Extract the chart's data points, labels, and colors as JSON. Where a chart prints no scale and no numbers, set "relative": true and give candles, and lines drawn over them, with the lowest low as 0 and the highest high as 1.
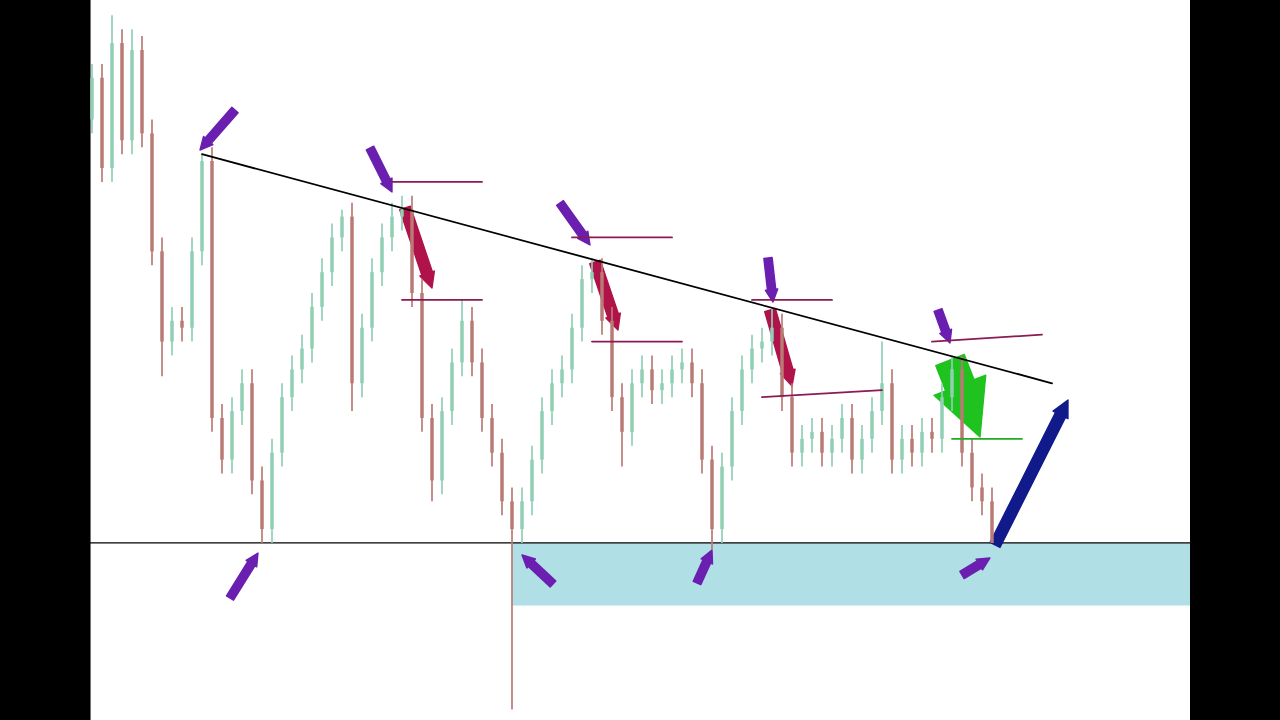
{
  "chart_data": {
    "type": "candlestick",
    "relative": true,
    "colors": [
      "#8fcfb4",
      "#b97a74",
      "#8fcfb4",
      "#b97a74",
      "#8fcfb4",
      "#b97a74",
      "#b97a74",
      "#b97a74",
      "#8fcfb4",
      "#b97a74",
      "#8fcfb4",
      "#8fcfb4",
      "#b97a74",
      "#b97a74",
      "#8fcfb4",
      "#8fcfb4",
      "#b97a74",
      "#b97a74",
      "#8fcfb4",
      "#8fcfb4",
      "#8fcfb4",
      "#8fcfb4",
      "#8fcfb4",
      "#8fcfb4",
      "#8fcfb4",
      "#8fcfb4",
      "#b97a74",
      "#8fcfb4",
      "#8fcfb4",
      "#8fcfb4",
      "#8fcfb4",
      "#8fcfb4",
      "#b97a74",
      "#b97a74",
      "#b97a74",
      "#8fcfb4",
      "#8fcfb4",
      "#8fcfb4",
      "#b97a74",
      "#b97a74",
      "#b97a74",
      "#b97a74",
      "#b97a74",
      "#8fcfb4",
      "#8fcfb4",
      "#8fcfb4",
      "#8fcfb4",
      "#8fcfb4",
      "#8fcfb4",
      "#8fcfb4",
      "#8fcfb4",
      "#b97a74",
      "#b97a74",
      "#b97a74",
      "#8fcfb4",
      "#8fcfb4",
      "#b97a74",
      "#8fcfb4",
      "#8fcfb4",
      "#8fcfb4",
      "#b97a74",
      "#b97a74",
      "#b97a74",
      "#8fcfb4",
      "#8fcfb4",
      "#8fcfb4",
      "#8fcfb4",
      "#8fcfb4",
      "#8fcfb4",
      "#b97a74",
      "#b97a74",
      "#8fcfb4",
      "#8fcfb4",
      "#b97a74",
      "#8fcfb4",
      "#8fcfb4",
      "#b97a74",
      "#8fcfb4",
      "#8fcfb4",
      "#8fcfb4",
      "#b97a74",
      "#8fcfb4",
      "#b97a74",
      "#8fcfb4",
      "#b97a74",
      "#8fcfb4",
      "#8fcfb4",
      "#b97a74",
      "#b97a74",
      "#b97a74",
      "#b97a74",
      null,
      null,
      null,
      null,
      null,
      null,
      null,
      null,
      null,
      null,
      null,
      null,
      null,
      null,
      null,
      null,
      null,
      null,
      null
    ],
    "categories": [
      null,
      null,
      null,
      null,
      null,
      null,
      null,
      null,
      null,
      null,
      null,
      null,
      null,
      null,
      null,
      null,
      null,
      null,
      null,
      null,
      null,
      null,
      null,
      null,
      null,
      null,
      null,
      null,
      null,
      null,
      null,
      null,
      null,
      null,
      null,
      null,
      null,
      null,
      null,
      null,
      null,
      null,
      null,
      null,
      null,
      null,
      null,
      null,
      null,
      null,
      null,
      null,
      null,
      null,
      null,
      null,
      null,
      null,
      null,
      null,
      null,
      null,
      null,
      null,
      null,
      null,
      null,
      null,
      null,
      null,
      null,
      null,
      null,
      null,
      null,
      null,
      null,
      null,
      null,
      null,
      null,
      null,
      null,
      null,
      null,
      null,
      null,
      null,
      null,
      null,
      null,
      null,
      null,
      null,
      null,
      null,
      null,
      null,
      null,
      null,
      null,
      null,
      null,
      null,
      null,
      null,
      null,
      null,
      null,
      null
    ],
    "ohlc": [
      [
        0.85,
        0.93,
        0.83,
        0.91
      ],
      [
        0.91,
        0.93,
        0.76,
        0.78
      ],
      [
        0.78,
        1.0,
        0.76,
        0.96
      ],
      [
        0.96,
        0.98,
        0.8,
        0.82
      ],
      [
        0.82,
        0.98,
        0.8,
        0.95
      ],
      [
        0.95,
        0.97,
        0.81,
        0.83
      ],
      [
        0.83,
        0.85,
        0.64,
        0.66
      ],
      [
        0.66,
        0.68,
        0.48,
        0.53
      ],
      [
        0.53,
        0.58,
        0.51,
        0.56
      ],
      [
        0.56,
        0.58,
        0.53,
        0.55
      ],
      [
        0.55,
        0.68,
        0.53,
        0.66
      ],
      [
        0.66,
        0.8,
        0.64,
        0.79
      ],
      [
        0.79,
        0.81,
        0.4,
        0.42
      ],
      [
        0.42,
        0.44,
        0.34,
        0.36
      ],
      [
        0.36,
        0.45,
        0.34,
        0.43
      ],
      [
        0.43,
        0.49,
        0.41,
        0.47
      ],
      [
        0.47,
        0.49,
        0.31,
        0.33
      ],
      [
        0.33,
        0.35,
        0.24,
        0.26
      ],
      [
        0.26,
        0.39,
        0.24,
        0.37
      ],
      [
        0.37,
        0.47,
        0.35,
        0.45
      ],
      [
        0.45,
        0.51,
        0.43,
        0.49
      ],
      [
        0.49,
        0.54,
        0.47,
        0.52
      ],
      [
        0.52,
        0.6,
        0.5,
        0.58
      ],
      [
        0.58,
        0.65,
        0.56,
        0.63
      ],
      [
        0.63,
        0.7,
        0.61,
        0.68
      ],
      [
        0.68,
        0.72,
        0.66,
        0.71
      ],
      [
        0.71,
        0.73,
        0.43,
        0.47
      ],
      [
        0.47,
        0.57,
        0.45,
        0.55
      ],
      [
        0.55,
        0.65,
        0.53,
        0.63
      ],
      [
        0.63,
        0.7,
        0.61,
        0.68
      ],
      [
        0.68,
        0.73,
        0.66,
        0.71
      ],
      [
        0.71,
        0.74,
        0.69,
        0.72
      ],
      [
        0.72,
        0.74,
        0.58,
        0.6
      ],
      [
        0.6,
        0.62,
        0.4,
        0.42
      ],
      [
        0.42,
        0.44,
        0.3,
        0.33
      ],
      [
        0.33,
        0.45,
        0.31,
        0.43
      ],
      [
        0.43,
        0.52,
        0.41,
        0.5
      ],
      [
        0.5,
        0.59,
        0.48,
        0.56
      ],
      [
        0.56,
        0.58,
        0.48,
        0.5
      ],
      [
        0.5,
        0.52,
        0.4,
        0.42
      ],
      [
        0.42,
        0.44,
        0.35,
        0.37
      ],
      [
        0.37,
        0.39,
        0.28,
        0.3
      ],
      [
        0.3,
        0.32,
        0.0,
        0.26
      ],
      [
        0.26,
        0.32,
        0.24,
        0.3
      ],
      [
        0.3,
        0.38,
        0.28,
        0.36
      ],
      [
        0.36,
        0.45,
        0.34,
        0.43
      ],
      [
        0.43,
        0.49,
        0.41,
        0.47
      ],
      [
        0.47,
        0.51,
        0.45,
        0.49
      ],
      [
        0.49,
        0.57,
        0.47,
        0.55
      ],
      [
        0.55,
        0.64,
        0.53,
        0.62
      ],
      [
        0.62,
        0.65,
        0.6,
        0.63
      ],
      [
        0.63,
        0.65,
        0.54,
        0.56
      ],
      [
        0.56,
        0.58,
        0.43,
        0.45
      ],
      [
        0.45,
        0.47,
        0.35,
        0.4
      ],
      [
        0.4,
        0.49,
        0.38,
        0.47
      ],
      [
        0.47,
        0.51,
        0.45,
        0.49
      ],
      [
        0.49,
        0.51,
        0.44,
        0.46
      ],
      [
        0.46,
        0.49,
        0.44,
        0.47
      ],
      [
        0.47,
        0.51,
        0.45,
        0.49
      ],
      [
        0.49,
        0.52,
        0.47,
        0.5
      ],
      [
        0.5,
        0.52,
        0.45,
        0.47
      ],
      [
        0.47,
        0.49,
        0.34,
        0.36
      ],
      [
        0.36,
        0.38,
        0.23,
        0.26
      ],
      [
        0.26,
        0.37,
        0.24,
        0.35
      ],
      [
        0.35,
        0.45,
        0.33,
        0.43
      ],
      [
        0.43,
        0.51,
        0.41,
        0.49
      ],
      [
        0.49,
        0.54,
        0.47,
        0.52
      ],
      [
        0.52,
        0.55,
        0.5,
        0.53
      ],
      [
        0.53,
        0.58,
        0.51,
        0.55
      ],
      [
        0.55,
        0.57,
        0.43,
        0.45
      ],
      [
        0.45,
        0.47,
        0.35,
        0.37
      ],
      [
        0.37,
        0.41,
        0.35,
        0.39
      ],
      [
        0.39,
        0.42,
        0.37,
        0.4
      ],
      [
        0.4,
        0.42,
        0.35,
        0.37
      ],
      [
        0.37,
        0.41,
        0.35,
        0.39
      ],
      [
        0.39,
        0.44,
        0.37,
        0.42
      ],
      [
        0.42,
        0.44,
        0.34,
        0.36
      ],
      [
        0.36,
        0.41,
        0.34,
        0.39
      ],
      [
        0.39,
        0.45,
        0.37,
        0.43
      ],
      [
        0.43,
        0.53,
        0.41,
        0.47
      ],
      [
        0.47,
        0.49,
        0.34,
        0.36
      ],
      [
        0.36,
        0.41,
        0.34,
        0.39
      ],
      [
        0.39,
        0.41,
        0.35,
        0.37
      ],
      [
        0.37,
        0.42,
        0.35,
        0.4
      ],
      [
        0.4,
        0.42,
        0.37,
        0.39
      ],
      [
        0.39,
        0.47,
        0.37,
        0.45
      ],
      [
        0.45,
        0.51,
        0.43,
        0.49
      ],
      [
        0.49,
        0.51,
        0.35,
        0.37
      ],
      [
        0.37,
        0.39,
        0.3,
        0.32
      ],
      [
        0.32,
        0.34,
        0.28,
        0.3
      ],
      [
        0.3,
        0.32,
        0.24,
        0.24
      ],
      null,
      null,
      null,
      null,
      null,
      null,
      null,
      null,
      null,
      null,
      null,
      null,
      null,
      null,
      null,
      null,
      null,
      null,
      null
    ],
    "series": [
      {
        "type": "line",
        "color": "#000000",
        "values": [
          null,
          null,
          null,
          null,
          null,
          null,
          null,
          null,
          null,
          null,
          null,
          0.8,
          null,
          null,
          null,
          null,
          null,
          null,
          null,
          null,
          null,
          null,
          null,
          null,
          null,
          null,
          null,
          null,
          null,
          null,
          null,
          null,
          null,
          null,
          null,
          null,
          null,
          null,
          null,
          null,
          null,
          null,
          null,
          null,
          null,
          null,
          null,
          null,
          null,
          null,
          null,
          null,
          null,
          null,
          null,
          null,
          null,
          null,
          null,
          null,
          null,
          null,
          null,
          null,
          null,
          null,
          null,
          null,
          null,
          null,
          null,
          null,
          null,
          null,
          null,
          null,
          null,
          null,
          null,
          null,
          null,
          null,
          null,
          null,
          null,
          null,
          null,
          null,
          null,
          null,
          null,
          null,
          null,
          null,
          null,
          null,
          0.47,
          null,
          null,
          null,
          null,
          null,
          null,
          null,
          null,
          null,
          null,
          null,
          null,
          null
        ]
      },
      {
        "type": "line",
        "color": "#8b1a55",
        "values": [
          null,
          null,
          null,
          null,
          null,
          null,
          null,
          null,
          null,
          null,
          null,
          null,
          null,
          null,
          null,
          null,
          null,
          null,
          null,
          null,
          null,
          null,
          null,
          null,
          null,
          null,
          null,
          null,
          null,
          null,
          0.76,
          null,
          null,
          null,
          null,
          null,
          null,
          null,
          null,
          0.76,
          null,
          null,
          null,
          null,
          null,
          null,
          null,
          null,
          null,
          null,
          null,
          null,
          null,
          null,
          null,
          null,
          null,
          null,
          null,
          null,
          null,
          null,
          null,
          null,
          null,
          null,
          null,
          null,
          null,
          null,
          null,
          null,
          null,
          null,
          null,
          null,
          null,
          null,
          null,
          null,
          null,
          null,
          null,
          null,
          null,
          null,
          null,
          null,
          null,
          null,
          null,
          null,
          null,
          null,
          null,
          null,
          null,
          null,
          null,
          null,
          null,
          null,
          null,
          null,
          null,
          null,
          null,
          null,
          null,
          null
        ]
      },
      {
        "type": "line",
        "color": "#8b1a55",
        "values": [
          null,
          null,
          null,
          null,
          null,
          null,
          null,
          null,
          null,
          null,
          null,
          null,
          null,
          null,
          null,
          null,
          null,
          null,
          null,
          null,
          null,
          null,
          null,
          null,
          null,
          null,
          null,
          null,
          null,
          null,
          null,
          0.59,
          null,
          null,
          null,
          null,
          null,
          null,
          null,
          0.59,
          null,
          null,
          null,
          null,
          null,
          null,
          null,
          null,
          null,
          null,
          null,
          null,
          null,
          null,
          null,
          null,
          null,
          null,
          null,
          null,
          null,
          null,
          null,
          null,
          null,
          null,
          null,
          null,
          null,
          null,
          null,
          null,
          null,
          null,
          null,
          null,
          null,
          null,
          null,
          null,
          null,
          null,
          null,
          null,
          null,
          null,
          null,
          null,
          null,
          null,
          null,
          null,
          null,
          null,
          null,
          null,
          null,
          null,
          null,
          null,
          null,
          null,
          null,
          null,
          null,
          null,
          null,
          null,
          null,
          null
        ]
      },
      {
        "type": "line",
        "color": "#8b1a55",
        "values": [
          null,
          null,
          null,
          null,
          null,
          null,
          null,
          null,
          null,
          null,
          null,
          null,
          null,
          null,
          null,
          null,
          null,
          null,
          null,
          null,
          null,
          null,
          null,
          null,
          null,
          null,
          null,
          null,
          null,
          null,
          null,
          null,
          null,
          null,
          null,
          null,
          null,
          null,
          null,
          null,
          null,
          null,
          null,
          null,
          null,
          null,
          null,
          null,
          0.68,
          null,
          null,
          null,
          null,
          null,
          null,
          null,
          null,
          null,
          0.68,
          null,
          null,
          null,
          null,
          null,
          null,
          null,
          null,
          null,
          null,
          null,
          null,
          null,
          null,
          null,
          null,
          null,
          null,
          null,
          null,
          null,
          null,
          null,
          null,
          null,
          null,
          null,
          null,
          null,
          null,
          null,
          null,
          null,
          null,
          null,
          null,
          null,
          null,
          null,
          null,
          null,
          null,
          null,
          null,
          null,
          null,
          null,
          null,
          null,
          null,
          null
        ]
      },
      {
        "type": "line",
        "color": "#8b1a55",
        "values": [
          null,
          null,
          null,
          null,
          null,
          null,
          null,
          null,
          null,
          null,
          null,
          null,
          null,
          null,
          null,
          null,
          null,
          null,
          null,
          null,
          null,
          null,
          null,
          null,
          null,
          null,
          null,
          null,
          null,
          null,
          null,
          null,
          null,
          null,
          null,
          null,
          null,
          null,
          null,
          null,
          null,
          null,
          null,
          null,
          null,
          null,
          null,
          null,
          null,
          null,
          0.53,
          null,
          null,
          null,
          null,
          null,
          null,
          null,
          null,
          0.53,
          null,
          null,
          null,
          null,
          null,
          null,
          null,
          null,
          null,
          null,
          null,
          null,
          null,
          null,
          null,
          null,
          null,
          null,
          null,
          null,
          null,
          null,
          null,
          null,
          null,
          null,
          null,
          null,
          null,
          null,
          null,
          null,
          null,
          null,
          null,
          null,
          null,
          null,
          null,
          null,
          null,
          null,
          null,
          null,
          null,
          null,
          null,
          null,
          null,
          null
        ]
      },
      {
        "type": "line",
        "color": "#8b1a55",
        "values": [
          null,
          null,
          null,
          null,
          null,
          null,
          null,
          null,
          null,
          null,
          null,
          null,
          null,
          null,
          null,
          null,
          null,
          null,
          null,
          null,
          null,
          null,
          null,
          null,
          null,
          null,
          null,
          null,
          null,
          null,
          null,
          null,
          null,
          null,
          null,
          null,
          null,
          null,
          null,
          null,
          null,
          null,
          null,
          null,
          null,
          null,
          null,
          null,
          null,
          null,
          null,
          null,
          null,
          null,
          null,
          null,
          null,
          null,
          null,
          null,
          null,
          null,
          null,
          null,
          null,
          null,
          0.59,
          null,
          null,
          null,
          null,
          null,
          null,
          null,
          0.59,
          null,
          null,
          null,
          null,
          null,
          null,
          null,
          null,
          null,
          null,
          null,
          null,
          null,
          null,
          null,
          null,
          null,
          null,
          null,
          null,
          null,
          null,
          null,
          null,
          null,
          null,
          null,
          null,
          null,
          null,
          null,
          null,
          null,
          null,
          null
        ]
      },
      {
        "type": "line",
        "color": "#8b1a55",
        "values": [
          null,
          null,
          null,
          null,
          null,
          null,
          null,
          null,
          null,
          null,
          null,
          null,
          null,
          null,
          null,
          null,
          null,
          null,
          null,
          null,
          null,
          null,
          null,
          null,
          null,
          null,
          null,
          null,
          null,
          null,
          null,
          null,
          null,
          null,
          null,
          null,
          null,
          null,
          null,
          null,
          null,
          null,
          null,
          null,
          null,
          null,
          null,
          null,
          null,
          null,
          null,
          null,
          null,
          null,
          null,
          null,
          null,
          null,
          null,
          null,
          null,
          null,
          null,
          null,
          null,
          null,
          null,
          0.45,
          null,
          null,
          null,
          null,
          null,
          null,
          null,
          null,
          null,
          null,
          null,
          0.46,
          null,
          null,
          null,
          null,
          null,
          null,
          null,
          null,
          null,
          null,
          null,
          null,
          null,
          null,
          null,
          null,
          null,
          null,
          null,
          null,
          null,
          null,
          null,
          null,
          null,
          null,
          null,
          null,
          null,
          null
        ]
      },
      {
        "type": "line",
        "color": "#8b1a55",
        "values": [
          null,
          null,
          null,
          null,
          null,
          null,
          null,
          null,
          null,
          null,
          null,
          null,
          null,
          null,
          null,
          null,
          null,
          null,
          null,
          null,
          null,
          null,
          null,
          null,
          null,
          null,
          null,
          null,
          null,
          null,
          null,
          null,
          null,
          null,
          null,
          null,
          null,
          null,
          null,
          null,
          null,
          null,
          null,
          null,
          null,
          null,
          null,
          null,
          null,
          null,
          null,
          null,
          null,
          null,
          null,
          null,
          null,
          null,
          null,
          null,
          null,
          null,
          null,
          null,
          null,
          null,
          null,
          null,
          null,
          null,
          null,
          null,
          null,
          null,
          null,
          null,
          null,
          null,
          null,
          null,
          null,
          null,
          null,
          null,
          0.53,
          null,
          null,
          null,
          null,
          null,
          null,
          null,
          null,
          null,
          null,
          0.54,
          null,
          null,
          null,
          null,
          null,
          null,
          null,
          null,
          null,
          null,
          null,
          null,
          null,
          null
        ]
      },
      {
        "type": "line",
        "color": "#22aa22",
        "values": [
          null,
          null,
          null,
          null,
          null,
          null,
          null,
          null,
          null,
          null,
          null,
          null,
          null,
          null,
          null,
          null,
          null,
          null,
          null,
          null,
          null,
          null,
          null,
          null,
          null,
          null,
          null,
          null,
          null,
          null,
          null,
          null,
          null,
          null,
          null,
          null,
          null,
          null,
          null,
          null,
          null,
          null,
          null,
          null,
          null,
          null,
          null,
          null,
          null,
          null,
          null,
          null,
          null,
          null,
          null,
          null,
          null,
          null,
          null,
          null,
          null,
          null,
          null,
          null,
          null,
          null,
          null,
          null,
          null,
          null,
          null,
          null,
          null,
          null,
          null,
          null,
          null,
          null,
          null,
          null,
          null,
          null,
          null,
          null,
          null,
          null,
          0.39,
          null,
          null,
          null,
          null,
          null,
          null,
          0.39,
          null,
          null,
          null,
          null,
          null,
          null,
          null,
          null,
          null,
          null,
          null,
          null,
          null,
          null,
          null,
          null
        ]
      }
    ],
    "bands": [
      {
        "axis": "y",
        "from": 0.15,
        "to": 0.24,
        "color": "#b0dfe6"
      }
    ],
    "ref_lines": [
      {
        "axis": "y",
        "value": 0.24,
        "color": "#000000"
      }
    ]
  }
}
